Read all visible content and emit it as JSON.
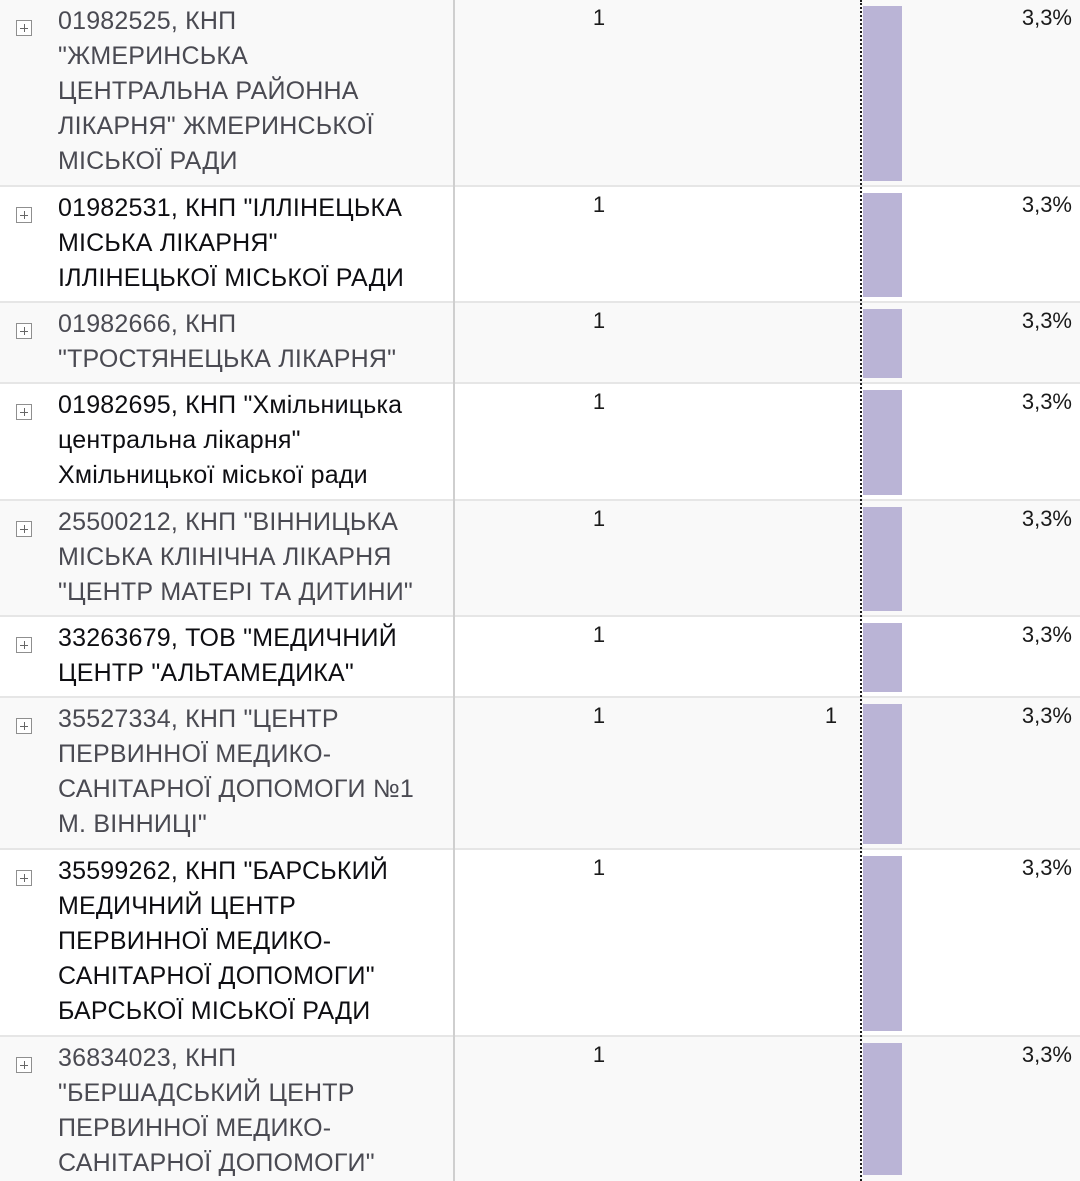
{
  "colors": {
    "bar": "#bab4d6",
    "row_border": "#e6e6e6",
    "column_divider": "#cfcfcf",
    "dashed_line": "#1c1c1c",
    "expander_border": "#8f8f8f"
  },
  "icons": {
    "expander": "expand-plus-icon"
  },
  "rows": [
    {
      "label": "01982525, КНП\n\"ЖМЕРИНСЬКА\nЦЕНТРАЛЬНА РАЙОННА\nЛІКАРНЯ\" ЖМЕРИНСЬКОЇ\nМІСЬКОЇ РАДИ",
      "value1": "1",
      "value2": "",
      "percent": "3,3%",
      "bar_fraction": 1.0
    },
    {
      "label": "01982531, КНП \"ІЛЛІНЕЦЬКА\nМІСЬКА ЛІКАРНЯ\"\nІЛЛІНЕЦЬКОЇ МІСЬКОЇ РАДИ",
      "value1": "1",
      "value2": "",
      "percent": "3,3%",
      "bar_fraction": 1.0
    },
    {
      "label": "01982666, КНП\n\"ТРОСТЯНЕЦЬКА ЛІКАРНЯ\"",
      "value1": "1",
      "value2": "",
      "percent": "3,3%",
      "bar_fraction": 1.0
    },
    {
      "label": "01982695, КНП \"Хмільницька\nцентральна лікарня\"\nХмільницької міської ради",
      "value1": "1",
      "value2": "",
      "percent": "3,3%",
      "bar_fraction": 1.0
    },
    {
      "label": "25500212, КНП \"ВІННИЦЬКА\nМІСЬКА КЛІНІЧНА ЛІКАРНЯ\n\"ЦЕНТР МАТЕРІ ТА ДИТИНИ\"",
      "value1": "1",
      "value2": "",
      "percent": "3,3%",
      "bar_fraction": 1.0
    },
    {
      "label": "33263679, ТОВ \"МЕДИЧНИЙ\nЦЕНТР \"АЛЬТАМЕДИКА\"",
      "value1": "1",
      "value2": "",
      "percent": "3,3%",
      "bar_fraction": 1.0
    },
    {
      "label": "35527334, КНП \"ЦЕНТР\nПЕРВИННОЇ МЕДИКО-\nСАНІТАРНОЇ ДОПОМОГИ №1\nМ. ВІННИЦІ\"",
      "value1": "1",
      "value2": "1",
      "percent": "3,3%",
      "bar_fraction": 1.0
    },
    {
      "label": "35599262, КНП \"БАРСЬКИЙ\nМЕДИЧНИЙ ЦЕНТР\nПЕРВИННОЇ МЕДИКО-\nСАНІТАРНОЇ ДОПОМОГИ\"\nБАРСЬКОЇ МІСЬКОЇ РАДИ",
      "value1": "1",
      "value2": "",
      "percent": "3,3%",
      "bar_fraction": 1.0
    },
    {
      "label": "36834023, КНП\n\"БЕРШАДСЬКИЙ ЦЕНТР\nПЕРВИННОЇ МЕДИКО-\nСАНІТАРНОЇ ДОПОМОГИ\"",
      "value1": "1",
      "value2": "",
      "percent": "3,3%",
      "bar_fraction": 1.0
    }
  ]
}
